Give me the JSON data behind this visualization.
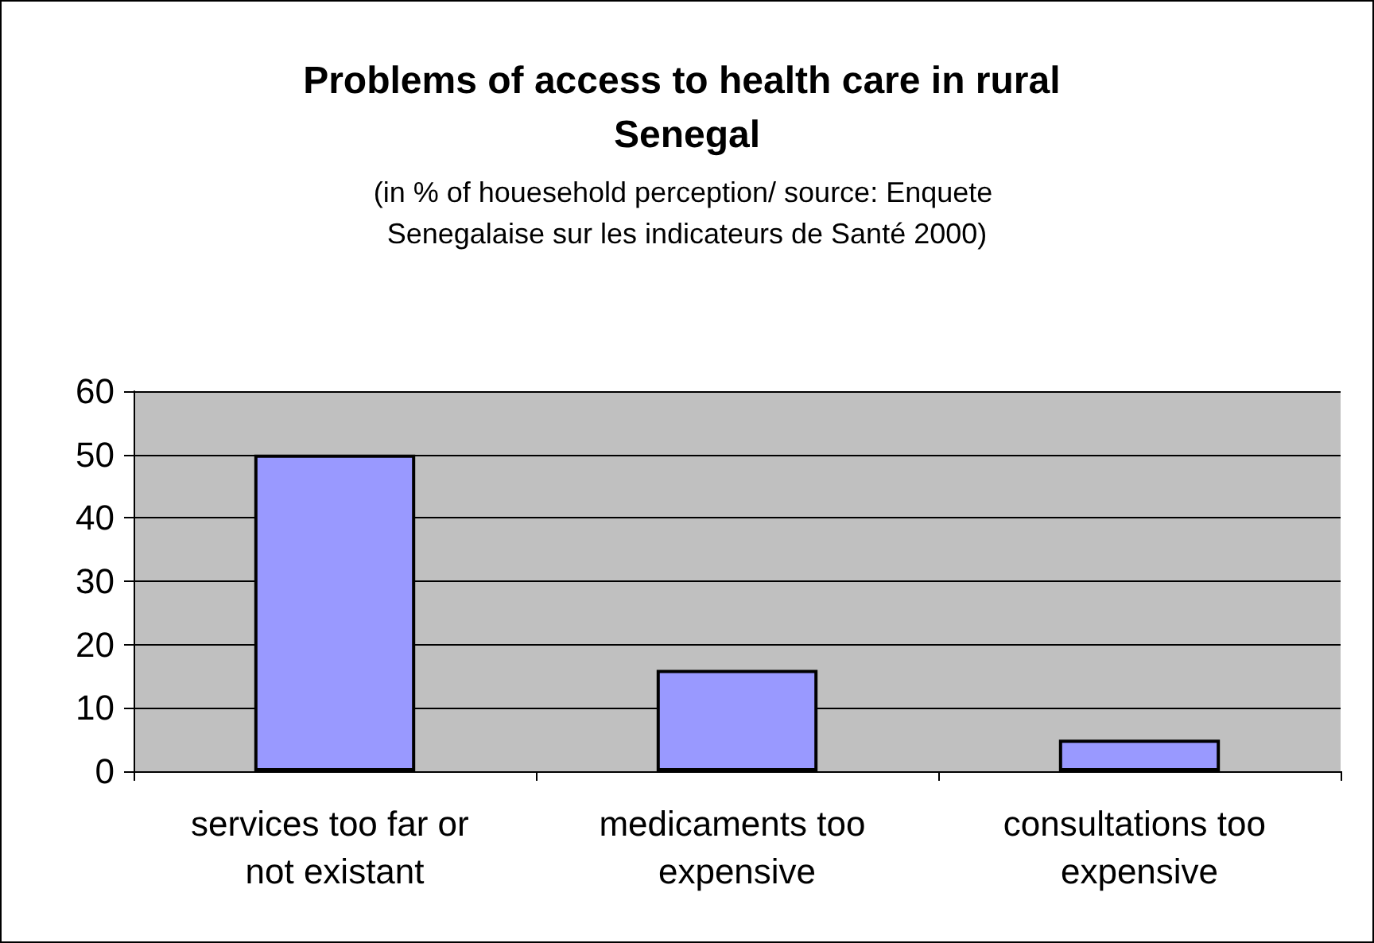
{
  "chart_data": {
    "type": "bar",
    "title": "Problems of access to health care in rural Senegal",
    "subtitle": "(in % of houesehold perception/ source: Enquete Senegalaise sur les indicateurs de Santé 2000)",
    "categories": [
      "services too far or not existant",
      "medicaments too expensive",
      "consultations too expensive"
    ],
    "values": [
      50,
      16,
      5
    ],
    "color": "#9999ff",
    "ylim": [
      0,
      60
    ],
    "yticks": [
      0,
      10,
      20,
      30,
      40,
      50,
      60
    ],
    "grid": "y"
  }
}
